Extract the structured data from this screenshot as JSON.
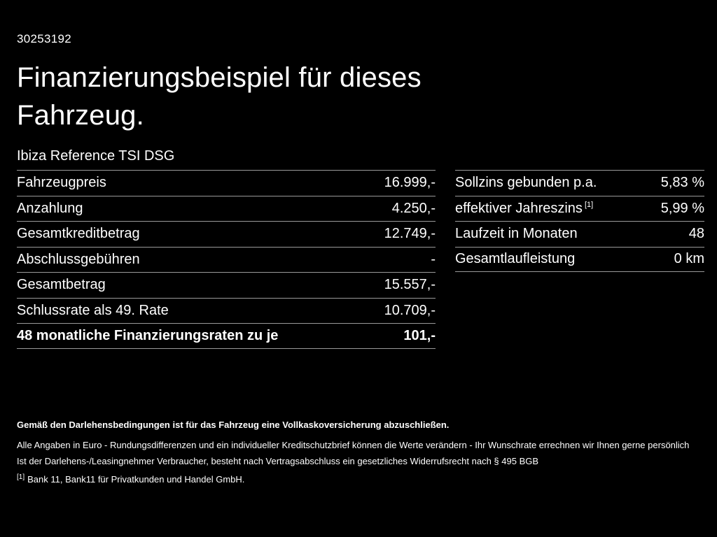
{
  "page": {
    "vehicle_id": "30253192",
    "title_line1": "Finanzierungsbeispiel für dieses",
    "title_line2": "Fahrzeug.",
    "subtitle": "Ibiza Reference TSI DSG"
  },
  "colors": {
    "background": "#000000",
    "text": "#ffffff",
    "divider": "#9a9a9a"
  },
  "left_table": {
    "rows": [
      {
        "label": "Fahrzeugpreis",
        "value": "16.999,-"
      },
      {
        "label": "Anzahlung",
        "value": "4.250,-"
      },
      {
        "label": "Gesamtkreditbetrag",
        "value": "12.749,-"
      },
      {
        "label": "Abschlussgebühren",
        "value": "-"
      },
      {
        "label": "Gesamtbetrag",
        "value": "15.557,-"
      },
      {
        "label": "Schlussrate als 49. Rate",
        "value": "10.709,-"
      },
      {
        "label": "48 monatliche Finanzierungsraten zu je",
        "value": "101,-"
      }
    ]
  },
  "right_table": {
    "rows": [
      {
        "label": "Sollzins gebunden p.a.",
        "value": "5,83 %"
      },
      {
        "label": "effektiver Jahreszins",
        "sup": "[1]",
        "value": "5,99 %"
      },
      {
        "label": "Laufzeit in Monaten",
        "value": "48"
      },
      {
        "label": "Gesamtlaufleistung",
        "value": "0 km"
      }
    ]
  },
  "footer": {
    "bold_note": "Gemäß den Darlehensbedingungen ist für das Fahrzeug eine Vollkaskoversicherung abzuschließen.",
    "note1": "Alle Angaben in Euro - Rundungsdifferenzen und ein individueller Kreditschutzbrief können die Werte verändern - Ihr Wunschrate errechnen wir Ihnen gerne persönlich",
    "note2": "Ist der Darlehens-/Leasingnehmer Verbraucher, besteht nach Vertragsabschluss ein gesetzliches Widerrufsrecht nach § 495 BGB",
    "footnote_marker": "[1]",
    "footnote_text": "Bank 11, Bank11 für Privatkunden und Handel GmbH."
  }
}
